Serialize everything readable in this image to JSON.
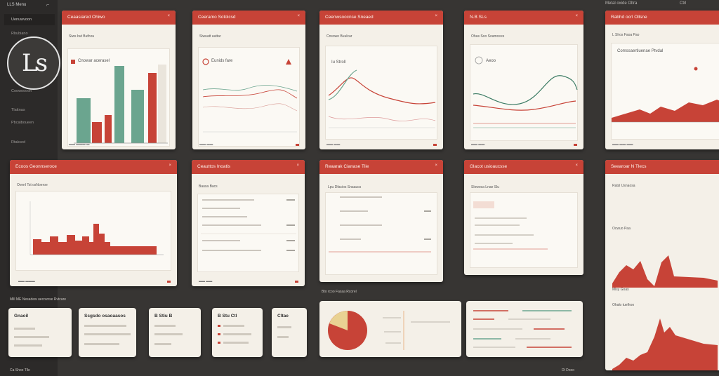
{
  "app": {
    "title": "Ls",
    "top_left": "LLS Menu",
    "top_right_1": "Metal oxide Oltra",
    "top_right_2": "Ctrl"
  },
  "sidebar": {
    "items": [
      "Uenuwvoon",
      "Rbubiano",
      "Coowoooon",
      "Tlattnas",
      "Pbcaiboueen",
      "Rtaksed"
    ]
  },
  "cards": {
    "c1": {
      "title": "Ceaasiared Ohiwo",
      "sub": "Siws but Buthou",
      "legend": "Cnowar acerasel"
    },
    "c2": {
      "title": "Ceeramo Sotolcsd",
      "sub": "Siwuatt auttar",
      "legend": "Eunids fare"
    },
    "c3": {
      "title": "Ceenwsoocnse Sneaed",
      "sub": "Cnsowe Buulcar",
      "legend": "Iu Stroll"
    },
    "c4": {
      "title": "N.B SLs",
      "sub": "Ohas Soo Soamcees",
      "legend": "Aeoo"
    },
    "c5": {
      "title": "Rabhd ocrl Ollsne",
      "sub": "L Shos Faoa Pao",
      "legend": "Comssaertiuenae Ptvdal"
    },
    "c6": {
      "title": "Ecoos Geonnseroce",
      "sub": "Ovnnl Tst osNoeroe"
    },
    "c7": {
      "title": "Ceauttos Inoatis",
      "sub": "Bausa Bacs"
    },
    "c8": {
      "title": "Reaarak Cianase Tlie",
      "sub": "Lpu Dfacios Snaaucs"
    },
    "c9": {
      "title": "Glacot usioaucsse",
      "sub": "Slowoca Lnae Slu"
    },
    "c10": {
      "title": "Seearoar N Tlecs",
      "sub": "Ratsl Usnaosa",
      "sub2": "Ocwuo Paa",
      "sub3": "Mlsy Goas",
      "sub4": "Ohalo tuelhoo"
    }
  },
  "tiles": {
    "t1": "Gnaoil",
    "t2": "Ssgsdo osaoaasos",
    "t3": "B Stiu B",
    "t4": "B Stu Ctl",
    "t5": "Cltae"
  },
  "bottom": {
    "left": "Mill ME Nesadew uecovnse Rvtcare",
    "mid": "Bto rcoo Fasaa Rcorel",
    "footer": "Ca Shoo Tlle",
    "right_footer": "Dl Dooo"
  },
  "colors": {
    "accent": "#c74337",
    "green": "#6ba58f",
    "bg": "#373533",
    "card": "#f4f0e8"
  }
}
